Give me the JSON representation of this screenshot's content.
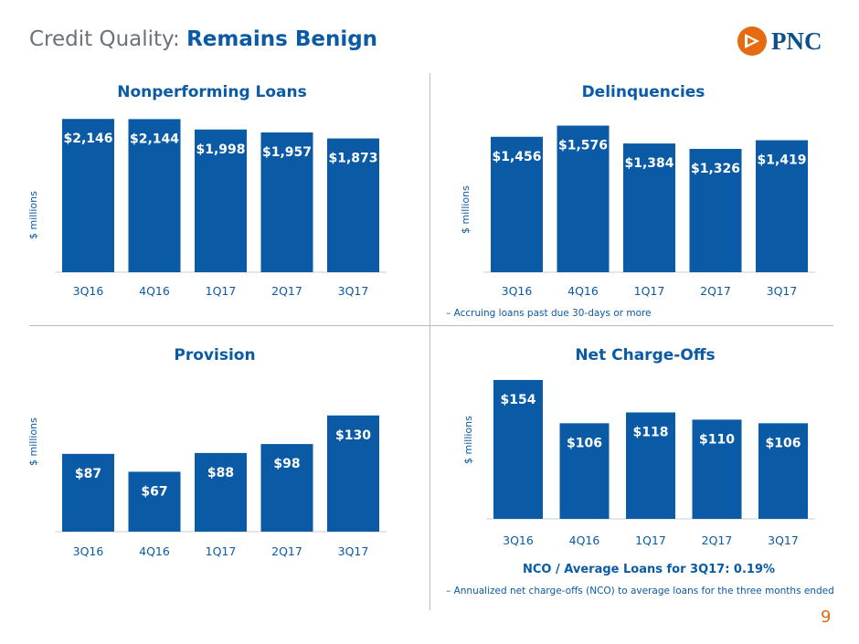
{
  "header": {
    "title_prefix": "Credit Quality: ",
    "title_accent": "Remains Benign",
    "logo_text": "PNC",
    "page_number": "9"
  },
  "colors": {
    "bar": "#0a5aa6",
    "label": "#ffffff",
    "text_blue": "#0a5aa6",
    "accent_orange": "#e56a10"
  },
  "panels": {
    "npl": {
      "title": "Nonperforming Loans",
      "ylabel": "$ millions"
    },
    "delinq": {
      "title": "Delinquencies",
      "ylabel": "$ millions",
      "footnote": "– Accruing loans past due 30-days or more"
    },
    "provision": {
      "title": "Provision",
      "ylabel": "$ millions"
    },
    "nco": {
      "title": "Net Charge-Offs",
      "ylabel": "$ millions",
      "ratio_text": "NCO / Average Loans for 3Q17: 0.19%",
      "footnote": "– Annualized net charge-offs (NCO) to average loans for the three months ended"
    }
  },
  "chart_data": [
    {
      "id": "npl",
      "type": "bar",
      "title": "Nonperforming Loans",
      "ylabel": "$ millions",
      "categories": [
        "3Q16",
        "4Q16",
        "1Q17",
        "2Q17",
        "3Q17"
      ],
      "values": [
        2146,
        2144,
        1998,
        1957,
        1873
      ],
      "labels": [
        "$2,146",
        "$2,144",
        "$1,998",
        "$1,957",
        "$1,873"
      ],
      "ylim": [
        0,
        2200
      ]
    },
    {
      "id": "delinq",
      "type": "bar",
      "title": "Delinquencies",
      "ylabel": "$ millions",
      "categories": [
        "3Q16",
        "4Q16",
        "1Q17",
        "2Q17",
        "3Q17"
      ],
      "values": [
        1456,
        1576,
        1384,
        1326,
        1419
      ],
      "labels": [
        "$1,456",
        "$1,576",
        "$1,384",
        "$1,326",
        "$1,419"
      ],
      "ylim": [
        0,
        1650
      ]
    },
    {
      "id": "provision",
      "type": "bar",
      "title": "Provision",
      "ylabel": "$ millions",
      "categories": [
        "3Q16",
        "4Q16",
        "1Q17",
        "2Q17",
        "3Q17"
      ],
      "values": [
        87,
        67,
        88,
        98,
        130
      ],
      "labels": [
        "$87",
        "$67",
        "$88",
        "$98",
        "$130"
      ],
      "ylim": [
        0,
        140
      ]
    },
    {
      "id": "nco",
      "type": "bar",
      "title": "Net Charge-Offs",
      "ylabel": "$ millions",
      "categories": [
        "3Q16",
        "4Q16",
        "1Q17",
        "2Q17",
        "3Q17"
      ],
      "values": [
        154,
        106,
        118,
        110,
        106
      ],
      "labels": [
        "$154",
        "$106",
        "$118",
        "$110",
        "$106"
      ],
      "ylim": [
        0,
        158
      ]
    }
  ]
}
